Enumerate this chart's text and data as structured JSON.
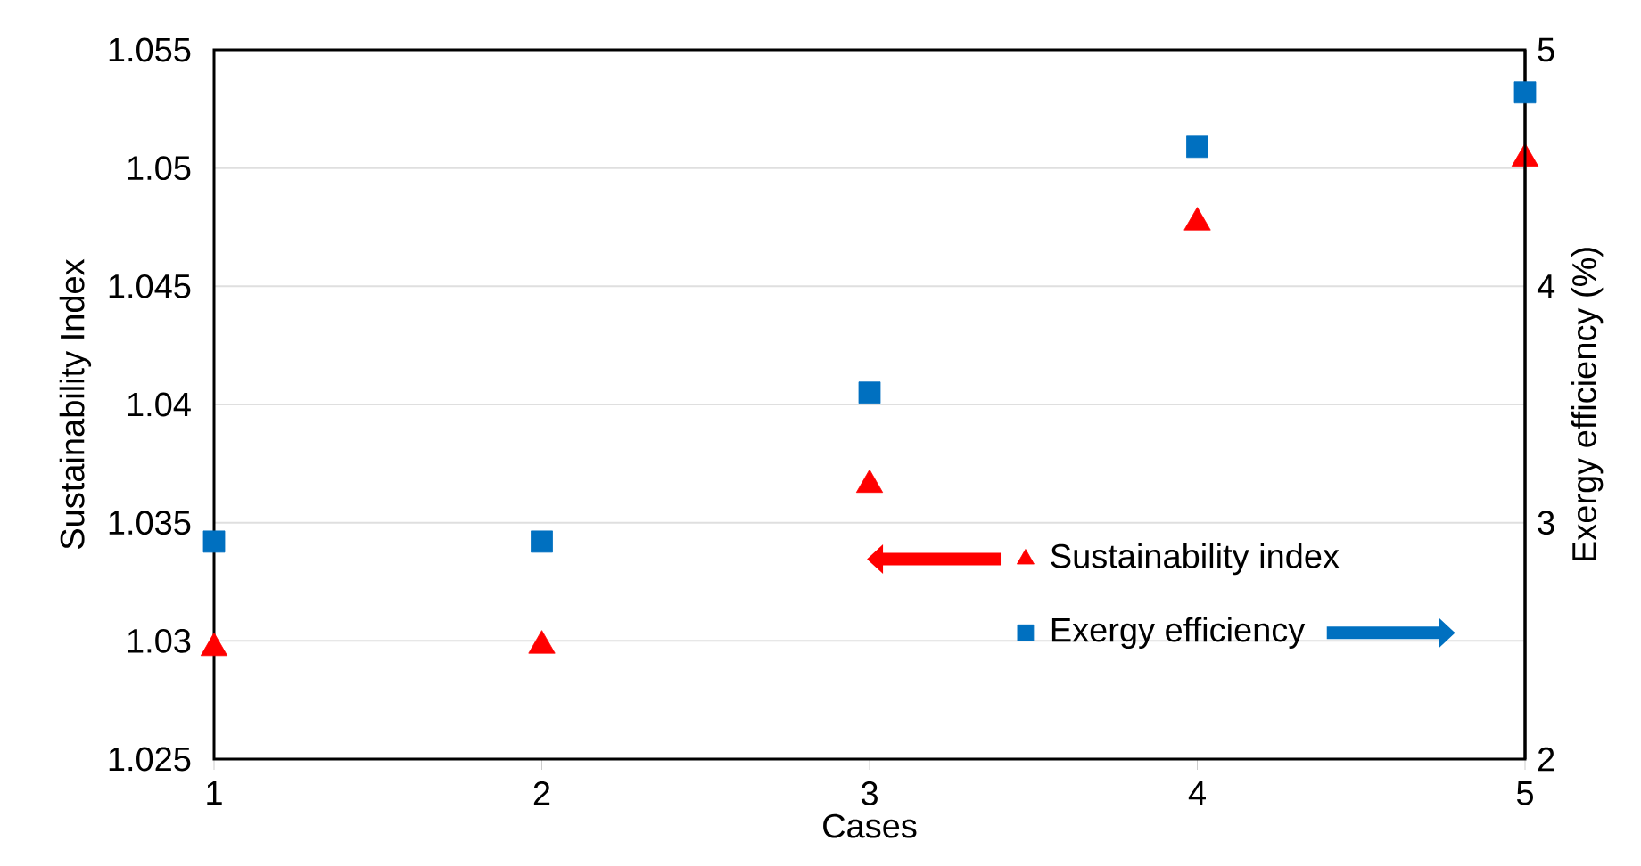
{
  "chart_data": {
    "type": "scatter",
    "xlabel": "Cases",
    "ylabel": "Sustainability Index",
    "y2label": "Exergy efficiency (%)",
    "x": [
      1,
      2,
      3,
      4,
      5
    ],
    "series": [
      {
        "name": "Sustainability index",
        "color": "#ff0000",
        "marker": "triangle",
        "values": [
          1.0297,
          1.0298,
          1.0366,
          1.0477,
          1.0504
        ]
      },
      {
        "name": "Exergy efficiency",
        "color": "#0070c0",
        "marker": "square",
        "axis": "y2",
        "values": [
          2.92,
          2.92,
          3.55,
          4.59,
          4.82
        ]
      }
    ],
    "xlim": [
      1,
      5
    ],
    "xticks": [
      1,
      2,
      3,
      4,
      5
    ],
    "ylim": [
      1.025,
      1.055
    ],
    "yticks": [
      1.025,
      1.03,
      1.035,
      1.04,
      1.045,
      1.05,
      1.055
    ],
    "y2lim": [
      2,
      5
    ],
    "y2ticks": [
      2,
      3,
      4,
      5
    ],
    "grid": "y",
    "legend": "bottom right"
  }
}
